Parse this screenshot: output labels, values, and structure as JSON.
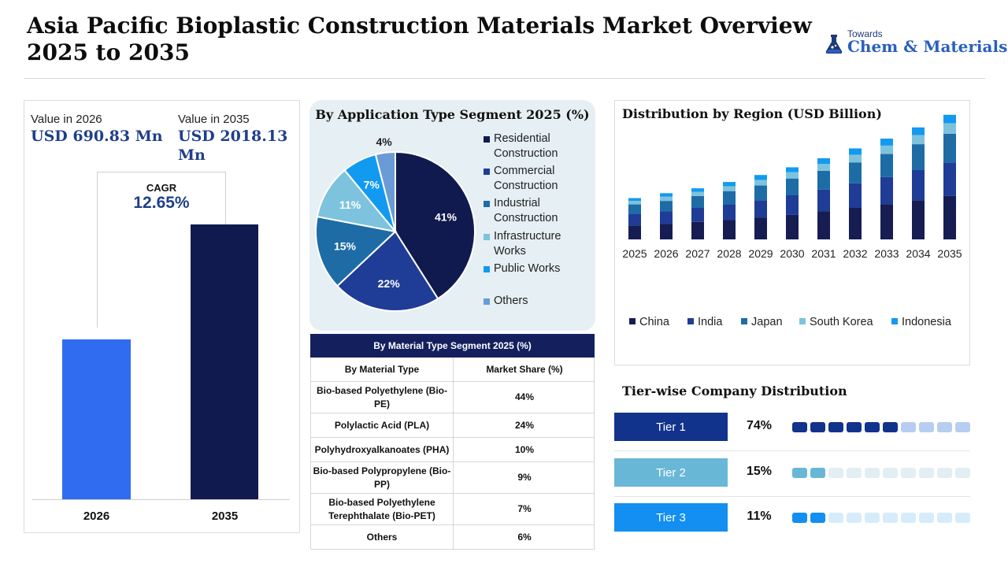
{
  "header": {
    "title_line1": "Asia Pacific Bioplastic Construction Materials Market Overview",
    "title_line2": "2025 to 2035",
    "logo_small": "Towards",
    "logo_big": "Chem & Materials"
  },
  "summary": {
    "label_2026": "Value in 2026",
    "value_2026": "USD 690.83 Mn",
    "label_2035": "Value in 2035",
    "value_2035": "USD 2018.13 Mn",
    "cagr_label": "CAGR",
    "cagr_value": "12.65%"
  },
  "colors": {
    "navy": "#111a4e",
    "blue": "#2f6cf0",
    "china": "#151d52",
    "india": "#1f3c96",
    "japan": "#1e6ca6",
    "south_korea": "#7ec3dd",
    "indonesia": "#129af0",
    "pie_residential": "#111a4e",
    "pie_commercial": "#1f3c96",
    "pie_industrial": "#1e6ca6",
    "pie_infrastructure": "#7ec3dd",
    "pie_public": "#129af0",
    "pie_others": "#6b9bd6",
    "tier1": "#12338c",
    "tier2": "#69b7d6",
    "tier3": "#128ff0"
  },
  "chart_data": [
    {
      "type": "bar",
      "categories": [
        "2026",
        "2035"
      ],
      "values": [
        690.83,
        2018.13
      ],
      "ylabel": "",
      "xlabel": ""
    },
    {
      "type": "pie",
      "title": "By Application Type Segment 2025 (%)",
      "labels": [
        "Residential Construction",
        "Commercial Construction",
        "Industrial Construction",
        "Infrastructure Works",
        "Public Works",
        "Others"
      ],
      "values": [
        41,
        22,
        15,
        11,
        7,
        4
      ],
      "data_labels": [
        "41%",
        "22%",
        "15%",
        "11%",
        "7%",
        "4%"
      ]
    },
    {
      "type": "table",
      "title": "By Material Type  Segment 2025 (%)",
      "columns": [
        "By Material Type",
        "Market Share (%)"
      ],
      "rows": [
        [
          "Bio-based Polyethylene (Bio-PE)",
          "44%"
        ],
        [
          "Polylactic Acid (PLA)",
          "24%"
        ],
        [
          "Polyhydroxyalkanoates (PHA)",
          "10%"
        ],
        [
          "Bio-based Polypropylene (Bio-PP)",
          "9%"
        ],
        [
          "Bio-based Polyethylene Terephthalate (Bio-PET)",
          "7%"
        ],
        [
          "Others",
          "6%"
        ]
      ]
    },
    {
      "type": "bar",
      "stacked": true,
      "title": "Distribution by Region (USD Billion)",
      "categories": [
        "2025",
        "2026",
        "2027",
        "2028",
        "2029",
        "2030",
        "2031",
        "2032",
        "2033",
        "2034",
        "2035"
      ],
      "series": [
        {
          "name": "China",
          "values": [
            0.2,
            0.22,
            0.25,
            0.28,
            0.31,
            0.35,
            0.4,
            0.45,
            0.5,
            0.56,
            0.62
          ]
        },
        {
          "name": "India",
          "values": [
            0.16,
            0.18,
            0.2,
            0.22,
            0.25,
            0.28,
            0.31,
            0.35,
            0.39,
            0.43,
            0.48
          ]
        },
        {
          "name": "Japan",
          "values": [
            0.14,
            0.15,
            0.17,
            0.19,
            0.21,
            0.24,
            0.27,
            0.3,
            0.33,
            0.37,
            0.41
          ]
        },
        {
          "name": "South Korea",
          "values": [
            0.05,
            0.06,
            0.06,
            0.07,
            0.08,
            0.09,
            0.1,
            0.11,
            0.12,
            0.13,
            0.15
          ]
        },
        {
          "name": "Indonesia",
          "values": [
            0.04,
            0.05,
            0.05,
            0.06,
            0.07,
            0.07,
            0.08,
            0.09,
            0.1,
            0.11,
            0.12
          ]
        }
      ],
      "legend": "bottom"
    },
    {
      "type": "bar",
      "title": "Tier-wise Company Distribution",
      "categories": [
        "Tier 1",
        "Tier 2",
        "Tier 3"
      ],
      "values": [
        74,
        15,
        11
      ],
      "data_labels": [
        "74%",
        "15%",
        "11%"
      ]
    }
  ]
}
